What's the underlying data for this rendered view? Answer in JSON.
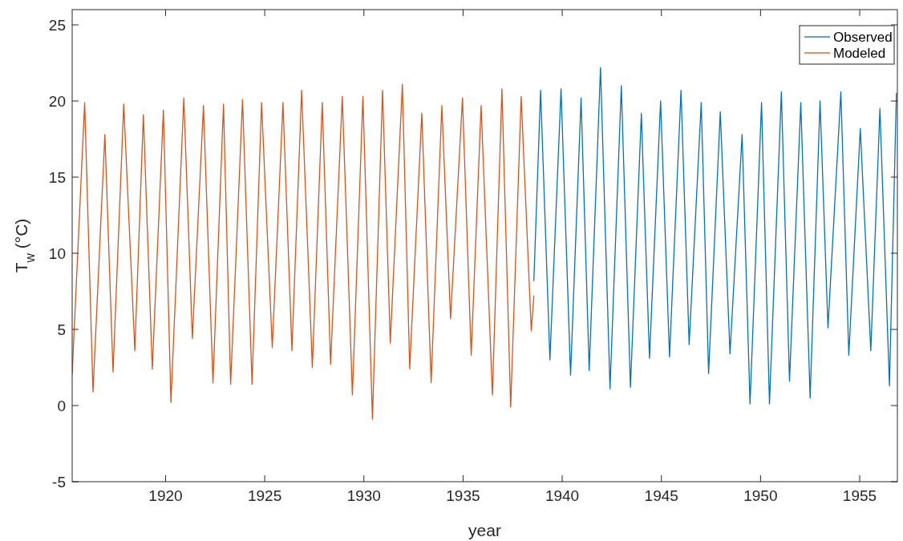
{
  "chart_data": {
    "type": "line",
    "xlabel": "year",
    "ylabel": "T$_{w}$ (°C)",
    "xlim": [
      1915.29,
      1956.9
    ],
    "xticks": [
      1920,
      1925,
      1930,
      1935,
      1940,
      1945,
      1950,
      1955
    ],
    "ylim": [
      -5,
      26
    ],
    "yticks": [
      -5,
      0,
      5,
      10,
      15,
      20,
      25
    ],
    "grid": false,
    "legend": "top right",
    "line_style": "solid",
    "marker": "none",
    "series": [
      {
        "name": "Observed",
        "color": "#0072bd",
        "x": [
          1938.57,
          1938.91,
          1939.38,
          1939.94,
          1940.42,
          1940.95,
          1941.36,
          1941.93,
          1942.41,
          1942.98,
          1943.44,
          1943.99,
          1944.4,
          1944.96,
          1945.41,
          1945.99,
          1946.4,
          1947.01,
          1947.38,
          1947.97,
          1948.46,
          1949.07,
          1949.47,
          1950.05,
          1950.45,
          1951.05,
          1951.46,
          1952.03,
          1952.5,
          1953.0,
          1953.4,
          1954.05,
          1954.45,
          1955.03,
          1955.56,
          1956.02,
          1956.5,
          1956.85
        ],
        "values": [
          8.2,
          20.7,
          3.0,
          20.8,
          2.0,
          20.2,
          2.3,
          22.2,
          1.1,
          21.0,
          1.2,
          19.2,
          3.1,
          20.0,
          3.2,
          20.7,
          4.0,
          19.9,
          2.1,
          19.3,
          3.4,
          17.8,
          0.1,
          19.9,
          0.1,
          20.6,
          1.6,
          19.9,
          0.5,
          20.0,
          5.1,
          20.6,
          3.3,
          18.2,
          3.6,
          19.5,
          1.3,
          20.5
        ]
      },
      {
        "name": "Modeled",
        "color": "#d95319",
        "x": [
          1915.29,
          1915.92,
          1916.34,
          1916.94,
          1917.35,
          1917.89,
          1918.45,
          1918.88,
          1919.33,
          1919.89,
          1920.27,
          1920.92,
          1921.35,
          1921.91,
          1922.39,
          1922.92,
          1923.28,
          1923.88,
          1924.36,
          1924.84,
          1925.38,
          1925.92,
          1926.37,
          1926.86,
          1927.4,
          1927.9,
          1928.32,
          1928.91,
          1929.42,
          1929.95,
          1930.43,
          1930.94,
          1931.33,
          1931.94,
          1932.31,
          1932.92,
          1933.39,
          1933.93,
          1934.37,
          1934.97,
          1935.41,
          1935.91,
          1936.48,
          1936.96,
          1937.4,
          1937.93,
          1938.44,
          1938.57
        ],
        "values": [
          2.1,
          19.9,
          0.9,
          17.8,
          2.2,
          19.8,
          3.6,
          19.1,
          2.4,
          19.4,
          0.2,
          20.2,
          4.4,
          19.7,
          1.5,
          19.8,
          1.4,
          20.1,
          1.4,
          19.9,
          3.8,
          19.9,
          3.6,
          20.7,
          2.5,
          19.9,
          2.7,
          20.3,
          0.7,
          20.3,
          -0.9,
          20.7,
          4.1,
          21.1,
          2.4,
          19.2,
          1.5,
          19.7,
          5.7,
          20.2,
          3.3,
          19.7,
          0.7,
          20.8,
          -0.1,
          20.3,
          4.9,
          7.2
        ]
      }
    ]
  }
}
